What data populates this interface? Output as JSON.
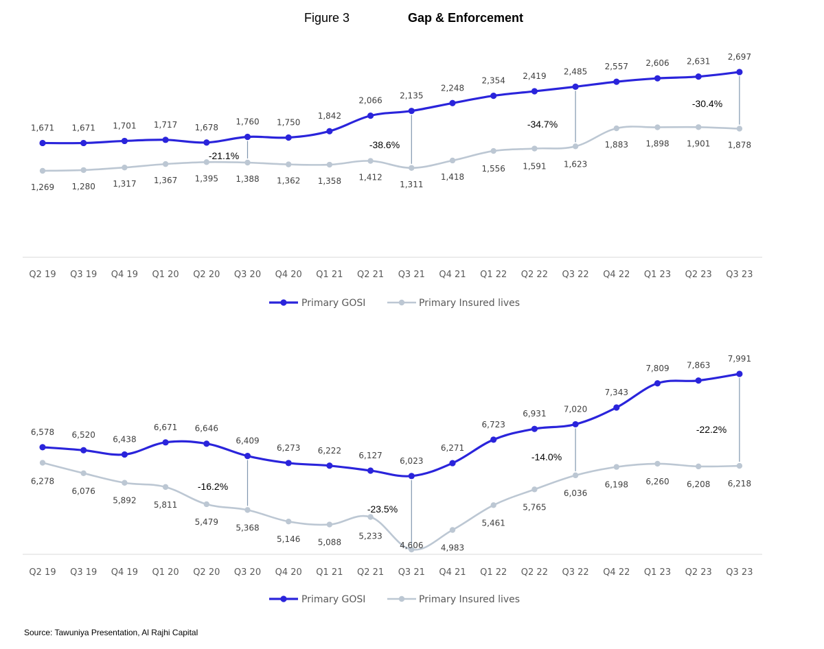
{
  "figure": {
    "label": "Figure 3",
    "title": "Gap & Enforcement"
  },
  "source": "Source: Tawuniya Presentation, Al Rajhi Capital",
  "colors": {
    "gosi": "#2A24DB",
    "insured": "#BCC7D3",
    "gap_line": "#7F96AE",
    "axis": "#D9D9D9"
  },
  "chart_data": [
    {
      "type": "line",
      "categories": [
        "Q2 19",
        "Q3 19",
        "Q4 19",
        "Q1 20",
        "Q2 20",
        "Q3 20",
        "Q4 20",
        "Q1 21",
        "Q2 21",
        "Q3 21",
        "Q4 21",
        "Q1 22",
        "Q2 22",
        "Q3 22",
        "Q4 22",
        "Q1 23",
        "Q2 23",
        "Q3 23"
      ],
      "series": [
        {
          "name": "Primary GOSI",
          "values": [
            1671,
            1671,
            1701,
            1717,
            1678,
            1760,
            1750,
            1842,
            2066,
            2135,
            2248,
            2354,
            2419,
            2485,
            2557,
            2606,
            2631,
            2697
          ],
          "labels": [
            "1,671",
            "1,671",
            "1,701",
            "1,717",
            "1,678",
            "1,760",
            "1,750",
            "1,842",
            "2,066",
            "2,135",
            "2,248",
            "2,354",
            "2,419",
            "2,485",
            "2,557",
            "2,606",
            "2,631",
            "2,697"
          ]
        },
        {
          "name": "Primary Insured lives",
          "values": [
            1269,
            1280,
            1317,
            1367,
            1395,
            1388,
            1362,
            1358,
            1412,
            1311,
            1418,
            1556,
            1591,
            1623,
            1883,
            1898,
            1901,
            1878
          ],
          "labels": [
            "1,269",
            "1,280",
            "1,317",
            "1,367",
            "1,395",
            "1,388",
            "1,362",
            "1,358",
            "1,412",
            "1,311",
            "1,418",
            "1,556",
            "1,591",
            "1,623",
            "1,883",
            "1,898",
            "1,901",
            "1,878"
          ]
        }
      ],
      "annotations": [
        {
          "index": 5,
          "text": "-21.1%"
        },
        {
          "index": 9,
          "text": "-38.6%"
        },
        {
          "index": 13,
          "text": "-34.7%"
        },
        {
          "index": 17,
          "text": "-30.4%"
        }
      ],
      "legend": "bottom-center"
    },
    {
      "type": "line",
      "categories": [
        "Q2 19",
        "Q3 19",
        "Q4 19",
        "Q1 20",
        "Q2 20",
        "Q3 20",
        "Q4 20",
        "Q1 21",
        "Q2 21",
        "Q3 21",
        "Q4 21",
        "Q1 22",
        "Q2 22",
        "Q3 22",
        "Q4 22",
        "Q1 23",
        "Q2 23",
        "Q3 23"
      ],
      "series": [
        {
          "name": "Primary GOSI",
          "values": [
            6578,
            6520,
            6438,
            6671,
            6646,
            6409,
            6273,
            6222,
            6127,
            6023,
            6271,
            6723,
            6931,
            7020,
            7343,
            7809,
            7863,
            7991
          ],
          "labels": [
            "6,578",
            "6,520",
            "6,438",
            "6,671",
            "6,646",
            "6,409",
            "6,273",
            "6,222",
            "6,127",
            "6,023",
            "6,271",
            "6,723",
            "6,931",
            "7,020",
            "7,343",
            "7,809",
            "7,863",
            "7,991"
          ]
        },
        {
          "name": "Primary Insured lives",
          "values": [
            6278,
            6076,
            5892,
            5811,
            5479,
            5368,
            5146,
            5088,
            5233,
            4606,
            4983,
            5461,
            5765,
            6036,
            6198,
            6260,
            6208,
            6218
          ],
          "labels": [
            "6,278",
            "6,076",
            "5,892",
            "5,811",
            "5,479",
            "5,368",
            "5,146",
            "5,088",
            "5,233",
            "4,606",
            "4,983",
            "5,461",
            "5,765",
            "6,036",
            "6,198",
            "6,260",
            "6,208",
            "6,218"
          ]
        }
      ],
      "annotations": [
        {
          "index": 5,
          "text": "-16.2%"
        },
        {
          "index": 9,
          "text": "-23.5%"
        },
        {
          "index": 13,
          "text": "-14.0%"
        },
        {
          "index": 17,
          "text": "-22.2%"
        }
      ],
      "legend": "bottom-center"
    }
  ]
}
